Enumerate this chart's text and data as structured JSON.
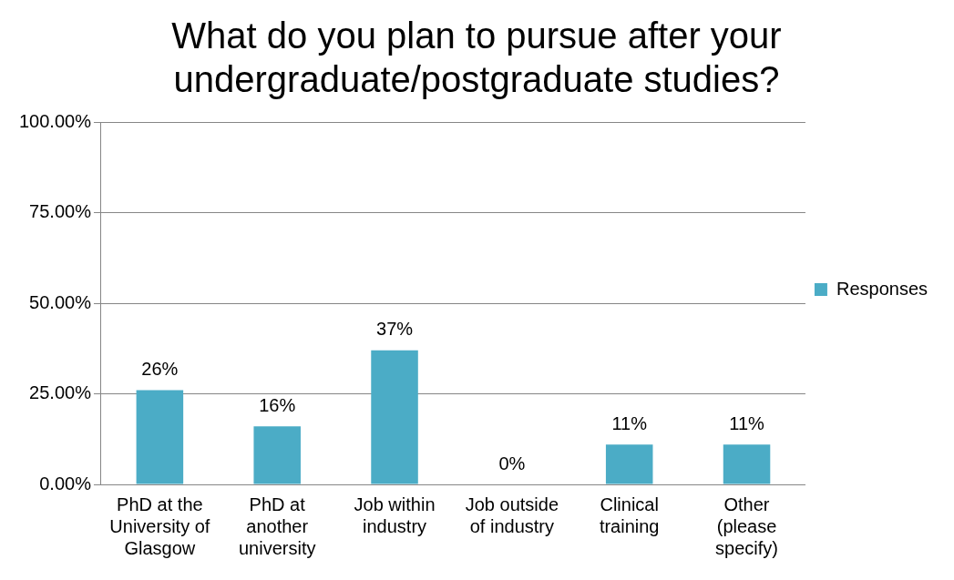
{
  "chart_data": {
    "type": "bar",
    "title": "What do you plan to pursue after your undergraduate/postgraduate studies?",
    "categories": [
      "PhD at the University of Glasgow",
      "PhD at another university",
      "Job within industry",
      "Job outside of industry",
      "Clinical training",
      "Other (please specify)"
    ],
    "series": [
      {
        "name": "Responses",
        "color": "#4bacc6",
        "values": [
          26,
          16,
          37,
          0,
          11,
          11
        ],
        "value_labels": [
          "26%",
          "16%",
          "37%",
          "0%",
          "11%",
          "11%"
        ]
      }
    ],
    "ylim": [
      0,
      100
    ],
    "yticks": [
      {
        "value": 0,
        "label": "0.00%"
      },
      {
        "value": 25,
        "label": "25.00%"
      },
      {
        "value": 50,
        "label": "50.00%"
      },
      {
        "value": 75,
        "label": "75.00%"
      },
      {
        "value": 100,
        "label": "100.00%"
      }
    ],
    "grid": "y",
    "legend": "right"
  }
}
